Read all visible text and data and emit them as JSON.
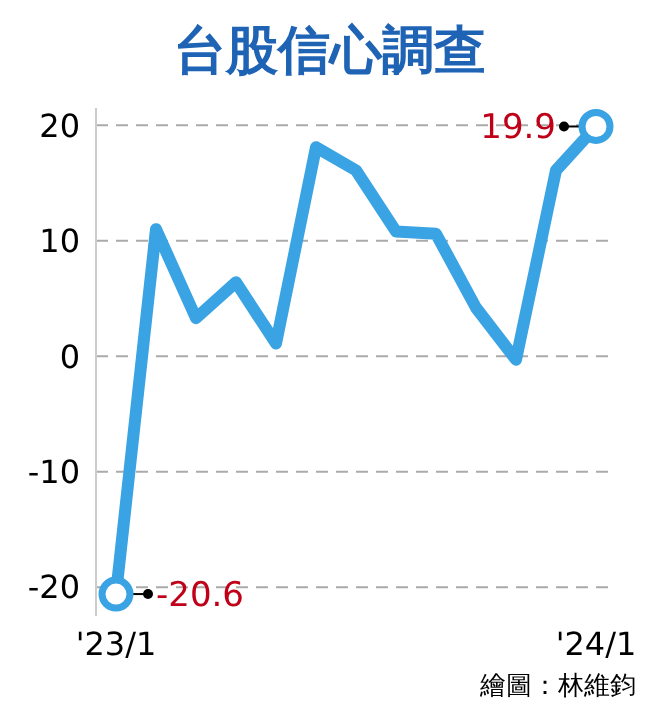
{
  "chart_data": {
    "type": "line",
    "title": "台股信心調查",
    "categories": [
      "'23/1",
      null,
      null,
      null,
      null,
      null,
      null,
      null,
      null,
      null,
      null,
      null,
      "'24/1"
    ],
    "series": [
      {
        "color": "#3aa3e3",
        "values": [
          -20.6,
          11,
          3.3,
          6.4,
          1.1,
          18.1,
          16.1,
          10.8,
          10.6,
          4.2,
          -0.3,
          16.1,
          19.9
        ],
        "value_labels": [
          "-20.6",
          null,
          null,
          null,
          null,
          null,
          null,
          null,
          null,
          null,
          null,
          null,
          "19.9"
        ]
      }
    ],
    "ylim": [
      -22.5,
      21.5
    ],
    "yticks": [
      -20,
      -10,
      0,
      10,
      20
    ],
    "grid": "y",
    "annotations": [
      "繪圖：林維鈞"
    ]
  }
}
